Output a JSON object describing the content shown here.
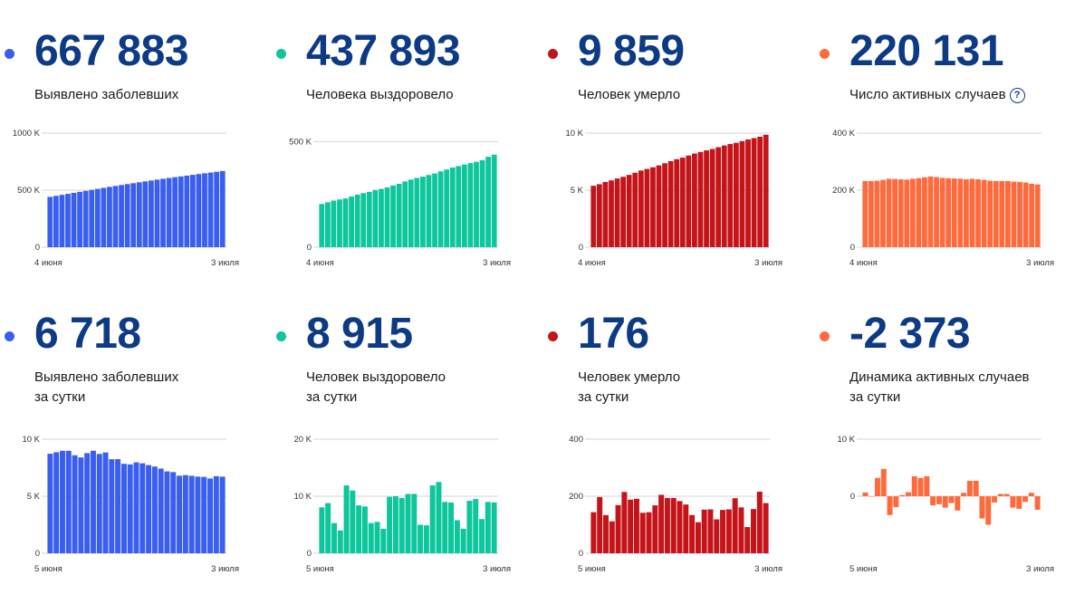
{
  "colors": {
    "cases": "#3a5ef0",
    "recovered": "#0dc69c",
    "deaths": "#c4141a",
    "active": "#ff6a3d",
    "number": "#0d3a85"
  },
  "panels": [
    {
      "key": "cases_total",
      "value": "667 883",
      "label_lines": [
        "Выявлено заболевших"
      ],
      "color": "#3a5ef0"
    },
    {
      "key": "recovered_total",
      "value": "437 893",
      "label_lines": [
        "Человека выздоровело"
      ],
      "color": "#0dc69c"
    },
    {
      "key": "deaths_total",
      "value": "9 859",
      "label_lines": [
        "Человек умерло"
      ],
      "color": "#c4141a"
    },
    {
      "key": "active_total",
      "value": "220 131",
      "label_lines": [
        "Число активных случаев"
      ],
      "help": "?",
      "color": "#ff6a3d"
    },
    {
      "key": "cases_daily",
      "value": "6 718",
      "label_lines": [
        "Выявлено заболевших",
        "за сутки"
      ],
      "color": "#3a5ef0"
    },
    {
      "key": "recovered_daily",
      "value": "8 915",
      "label_lines": [
        "Человек выздоровело",
        "за сутки"
      ],
      "color": "#0dc69c"
    },
    {
      "key": "deaths_daily",
      "value": "176",
      "label_lines": [
        "Человек умерло",
        "за сутки"
      ],
      "color": "#c4141a"
    },
    {
      "key": "active_daily",
      "value": "-2 373",
      "label_lines": [
        "Динамика активных случаев",
        "за сутки"
      ],
      "color": "#ff6a3d"
    }
  ],
  "chart_data": [
    {
      "type": "bar",
      "title": "Выявлено заболевших",
      "x_start_label": "4 июня",
      "x_end_label": "3 июля",
      "y_ticks": [
        0,
        500000,
        1000000
      ],
      "y_tick_labels": [
        "0",
        "500 K",
        "1000 K"
      ],
      "ylim": [
        0,
        1000000
      ],
      "values": [
        441108,
        449834,
        458689,
        467673,
        476658,
        485253,
        493657,
        502436,
        511423,
        520129,
        528964,
        537210,
        545458,
        553301,
        561091,
        569063,
        576952,
        584680,
        592280,
        599705,
        606881,
        613994,
        620794,
        627646,
        634437,
        641156,
        647849,
        654405,
        661165,
        667883
      ],
      "color": "#3a5ef0"
    },
    {
      "type": "bar",
      "title": "Человека выздоровело",
      "x_start_label": "4 июня",
      "x_end_label": "3 июля",
      "y_ticks": [
        0,
        500000
      ],
      "y_tick_labels": [
        "0",
        "500 K"
      ],
      "ylim": [
        0,
        540000
      ],
      "values": [
        204623,
        212680,
        220800,
        226100,
        230688,
        240000,
        249000,
        256000,
        262000,
        271000,
        276000,
        283000,
        292000,
        300000,
        311000,
        320000,
        328000,
        334000,
        342000,
        349000,
        359000,
        368000,
        377000,
        384000,
        391000,
        398000,
        404000,
        412000,
        428000,
        437893
      ],
      "color": "#0dc69c"
    },
    {
      "type": "bar",
      "title": "Человек умерло",
      "x_start_label": "4 июня",
      "x_end_label": "3 июля",
      "y_ticks": [
        0,
        5000,
        10000
      ],
      "y_tick_labels": [
        "0",
        "5 K",
        "10 K"
      ],
      "ylim": [
        0,
        10000
      ],
      "values": [
        5384,
        5520,
        5717,
        5857,
        6022,
        6172,
        6340,
        6528,
        6719,
        6861,
        7005,
        7172,
        7358,
        7543,
        7714,
        7855,
        8039,
        8210,
        8349,
        8486,
        8610,
        8765,
        8915,
        9045,
        9151,
        9298,
        9446,
        9561,
        9683,
        9859
      ],
      "color": "#c4141a"
    },
    {
      "type": "bar",
      "title": "Число активных случаев",
      "x_start_label": "4 июня",
      "x_end_label": "3 июля",
      "y_ticks": [
        0,
        200000,
        400000
      ],
      "y_tick_labels": [
        "0",
        "200 K",
        "400 K"
      ],
      "ylim": [
        0,
        400000
      ],
      "values": [
        232000,
        232000,
        233000,
        236000,
        240000,
        239000,
        238000,
        237000,
        240000,
        242000,
        245000,
        248000,
        246000,
        243000,
        242000,
        241000,
        240000,
        238000,
        240000,
        238000,
        236000,
        233000,
        232000,
        232000,
        232000,
        230000,
        229000,
        227000,
        222504,
        220131
      ],
      "color": "#ff6a3d"
    },
    {
      "type": "bar",
      "title": "Выявлено заболевших за сутки",
      "x_start_label": "5 июня",
      "x_end_label": "3 июля",
      "y_ticks": [
        0,
        5000,
        10000
      ],
      "y_tick_labels": [
        "0",
        "5 K",
        "10 K"
      ],
      "ylim": [
        0,
        10000
      ],
      "values": [
        8726,
        8855,
        8984,
        8985,
        8595,
        8404,
        8779,
        8987,
        8706,
        8835,
        8246,
        8248,
        7843,
        7790,
        7972,
        7889,
        7728,
        7600,
        7425,
        7176,
        7113,
        6800,
        6852,
        6791,
        6719,
        6693,
        6556,
        6760,
        6718
      ],
      "color": "#3a5ef0"
    },
    {
      "type": "bar",
      "title": "Человек выздоровело за сутки",
      "x_start_label": "5 июня",
      "x_end_label": "3 июля",
      "y_ticks": [
        0,
        10000,
        20000
      ],
      "y_tick_labels": [
        "0",
        "10 K",
        "20 K"
      ],
      "ylim": [
        0,
        20000
      ],
      "values": [
        8057,
        8800,
        5300,
        4000,
        11900,
        11000,
        8400,
        8200,
        5300,
        5500,
        4300,
        9900,
        10000,
        9700,
        10400,
        10400,
        5000,
        4900,
        11900,
        12500,
        9000,
        8900,
        5800,
        4300,
        9200,
        9500,
        6000,
        9000,
        8915
      ],
      "color": "#0dc69c"
    },
    {
      "type": "bar",
      "title": "Человек умерло за сутки",
      "x_start_label": "5 июня",
      "x_end_label": "3 июля",
      "y_ticks": [
        0,
        200,
        400
      ],
      "y_tick_labels": [
        "0",
        "200",
        "400"
      ],
      "ylim": [
        0,
        400
      ],
      "values": [
        144,
        197,
        134,
        112,
        169,
        215,
        188,
        191,
        142,
        144,
        168,
        205,
        194,
        194,
        183,
        171,
        134,
        109,
        153,
        154,
        119,
        152,
        154,
        193,
        161,
        92,
        155,
        216,
        176
      ],
      "color": "#c4141a"
    },
    {
      "type": "bar",
      "title": "Динамика активных случаев за сутки",
      "x_start_label": "5 июня",
      "x_end_label": "3 июля",
      "y_ticks": [
        0,
        10000
      ],
      "y_tick_labels": [
        "0",
        "10 K"
      ],
      "ylim": [
        -10000,
        10000
      ],
      "values": [
        669,
        -55,
        3200,
        4800,
        -3300,
        -1900,
        200,
        700,
        3500,
        3200,
        3500,
        -1600,
        -1400,
        -2000,
        -1200,
        -2500,
        600,
        2700,
        2700,
        -3900,
        -5000,
        -1100,
        400,
        400,
        -2000,
        -2200,
        -1000,
        600,
        -2373
      ],
      "color": "#ff6a3d"
    }
  ]
}
